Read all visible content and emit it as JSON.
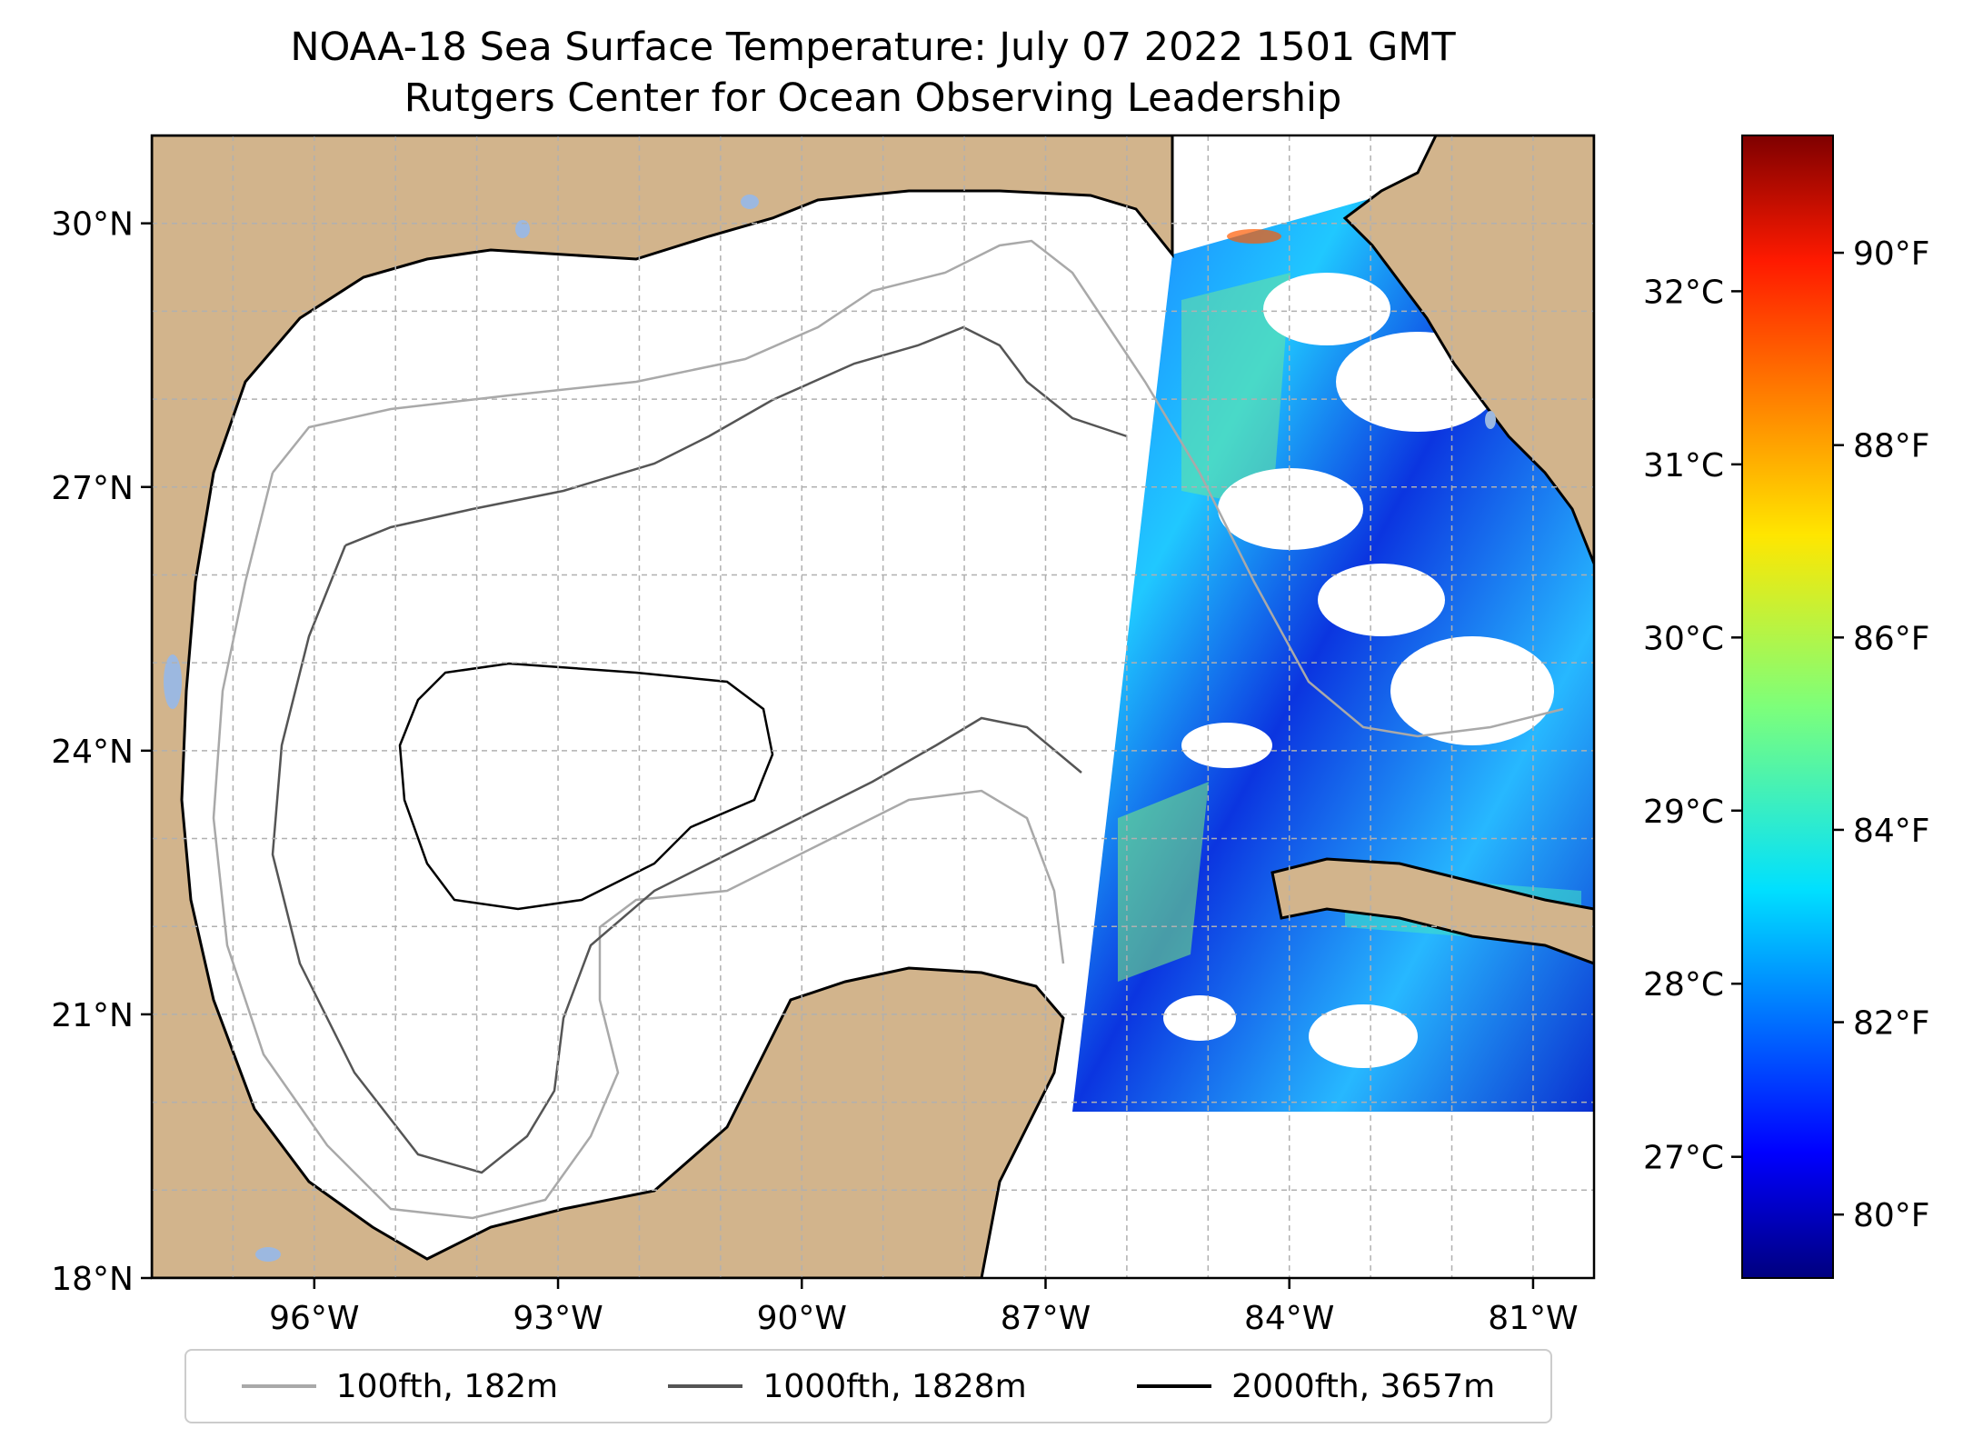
{
  "title": {
    "line1": "NOAA-18 Sea Surface Temperature: July 07 2022 1501 GMT",
    "line2": "Rutgers Center for Ocean Observing Leadership"
  },
  "map": {
    "lon_range": [
      -98,
      -80.25
    ],
    "lat_range": [
      18,
      31
    ],
    "lon_ticks": [
      {
        "value": -96,
        "label": "96°W"
      },
      {
        "value": -93,
        "label": "93°W"
      },
      {
        "value": -90,
        "label": "90°W"
      },
      {
        "value": -87,
        "label": "87°W"
      },
      {
        "value": -84,
        "label": "84°W"
      },
      {
        "value": -81,
        "label": "81°W"
      }
    ],
    "lat_ticks": [
      {
        "value": 18,
        "label": "18°N"
      },
      {
        "value": 21,
        "label": "21°N"
      },
      {
        "value": 24,
        "label": "24°N"
      },
      {
        "value": 27,
        "label": "27°N"
      },
      {
        "value": 30,
        "label": "30°N"
      }
    ],
    "grid": true,
    "land_color": "#d2b48c",
    "lake_color": "#9cb8e0",
    "swath_note": "satellite SST swath covers eastern Gulf and Florida waters"
  },
  "colorbar": {
    "colormap": "jet",
    "celsius_range": [
      26.3,
      32.9
    ],
    "celsius_ticks": [
      {
        "value": 27,
        "label": "27°C"
      },
      {
        "value": 28,
        "label": "28°C"
      },
      {
        "value": 29,
        "label": "29°C"
      },
      {
        "value": 30,
        "label": "30°C"
      },
      {
        "value": 31,
        "label": "31°C"
      },
      {
        "value": 32,
        "label": "32°C"
      }
    ],
    "fahrenheit_ticks": [
      {
        "value": 80,
        "label": "80°F"
      },
      {
        "value": 82,
        "label": "82°F"
      },
      {
        "value": 84,
        "label": "84°F"
      },
      {
        "value": 86,
        "label": "86°F"
      },
      {
        "value": 88,
        "label": "88°F"
      },
      {
        "value": 90,
        "label": "90°F"
      }
    ]
  },
  "legend": {
    "placement": "bottom-center",
    "items": [
      {
        "label": "100fth, 182m",
        "color": "#a9a9a9"
      },
      {
        "label": "1000fth, 1828m",
        "color": "#555555"
      },
      {
        "label": "2000fth, 3657m",
        "color": "#000000"
      }
    ]
  }
}
